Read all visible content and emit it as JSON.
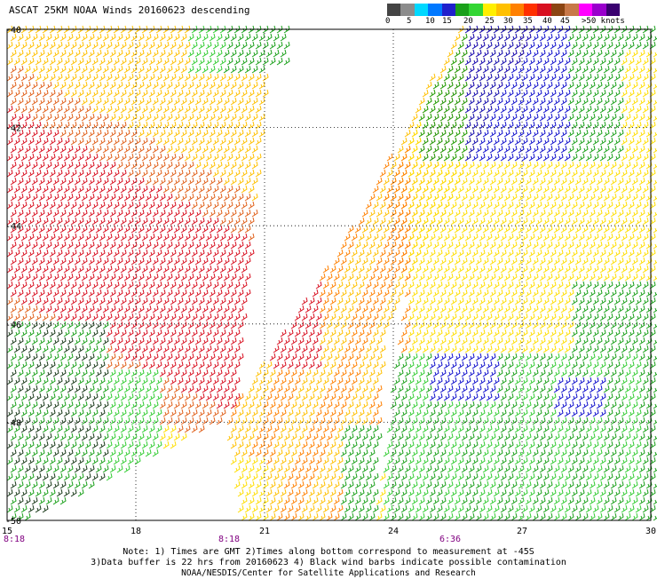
{
  "title": "ASCAT 25KM NOAA Winds 20160623 descending",
  "legend": {
    "colors": [
      "#444444",
      "#8c8c8c",
      "#00d8ff",
      "#0078ff",
      "#2020cc",
      "#1aa01a",
      "#33d633",
      "#ffef00",
      "#ffc000",
      "#ff8000",
      "#ff3000",
      "#d81020",
      "#8b4513",
      "#c87848",
      "#ff00ff",
      "#9900cc",
      "#3a0070"
    ],
    "labels": [
      "0",
      "5",
      "10",
      "15",
      "20",
      "25",
      "30",
      "35",
      "40",
      "45",
      ">50 knots"
    ],
    "label_offsets": [
      0,
      24,
      45,
      64,
      88,
      112,
      133,
      155,
      177,
      197,
      221
    ]
  },
  "axes": {
    "lat_labels": [
      "-40",
      "-42",
      "-44",
      "-46",
      "-48",
      "-50"
    ],
    "lon_labels": [
      "15",
      "18",
      "21",
      "24",
      "27",
      "30"
    ],
    "lon_range": [
      15,
      30
    ],
    "lat_range": [
      -40,
      -50
    ]
  },
  "pass_times": [
    "8:18",
    "8:18",
    "6:36"
  ],
  "notes": {
    "line1": "Note: 1) Times are GMT 2)Times along bottom correspond to measurement at -45S",
    "line2": "3)Data buffer is 22 hrs from 20160623 4) Black wind barbs indicate possible contamination",
    "line3": "NOAA/NESDIS/Center for Satellite Applications and Research"
  }
}
